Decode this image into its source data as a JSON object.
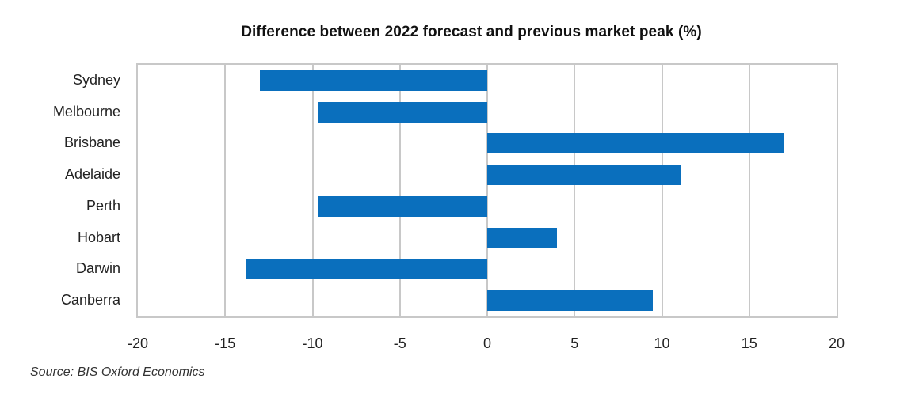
{
  "chart_data": {
    "type": "bar",
    "orientation": "horizontal",
    "title": "Difference between 2022 forecast and previous market peak (%)",
    "xlabel": "",
    "ylabel": "",
    "categories": [
      "Sydney",
      "Melbourne",
      "Brisbane",
      "Adelaide",
      "Perth",
      "Hobart",
      "Darwin",
      "Canberra"
    ],
    "values": [
      -13.0,
      -9.7,
      17.0,
      11.1,
      -9.7,
      4.0,
      -13.8,
      9.5
    ],
    "xlim": [
      -20,
      20
    ],
    "xticks": [
      "-20",
      "-15",
      "-10",
      "-5",
      "0",
      "5",
      "10",
      "15",
      "20"
    ],
    "grid": "vertical",
    "legend": null,
    "bar_color": "#0a6fbd",
    "source": "Source: BIS Oxford Economics"
  }
}
